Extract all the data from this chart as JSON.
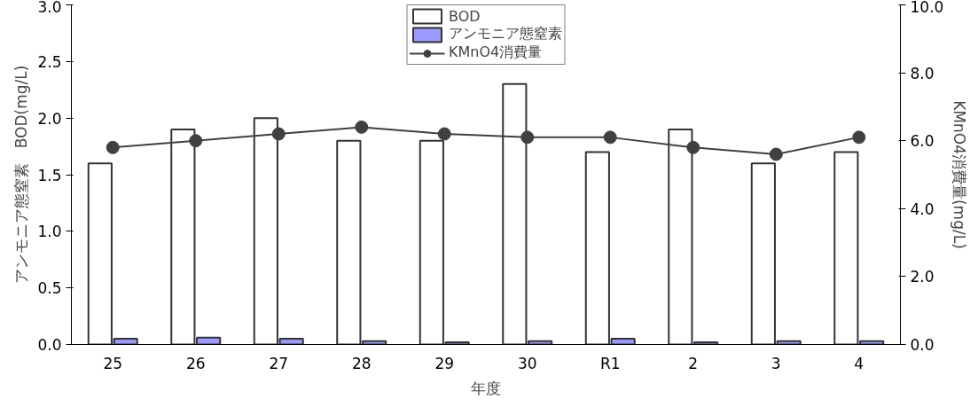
{
  "chart_data": {
    "type": "bar",
    "xlabel": "年度",
    "ylabel": "アンモニア態窒素　BOD(mg/L)",
    "y2label": "KMnO4消費量(mg/L)",
    "categories": [
      "25",
      "26",
      "27",
      "28",
      "29",
      "30",
      "R1",
      "2",
      "3",
      "4"
    ],
    "series": [
      {
        "name": "BOD",
        "color": "#ffffff",
        "values": [
          1.6,
          1.9,
          2.0,
          1.8,
          1.8,
          2.3,
          1.7,
          1.9,
          1.6,
          1.7
        ]
      },
      {
        "name": "アンモニア態窒素",
        "color": "#9999ff",
        "values": [
          0.05,
          0.06,
          0.05,
          0.03,
          0.02,
          0.03,
          0.05,
          0.02,
          0.03,
          0.03
        ]
      },
      {
        "name": "KMnO4消費量",
        "type": "line",
        "axis": "y2",
        "color": "#404040",
        "values": [
          5.8,
          6.0,
          6.2,
          6.4,
          6.2,
          6.1,
          6.1,
          5.8,
          5.6,
          6.1
        ]
      }
    ],
    "ylim": [
      0,
      3
    ],
    "yticks": [
      {
        "value": 0,
        "label": "0.0"
      },
      {
        "value": 0.5,
        "label": "0.5"
      },
      {
        "value": 1,
        "label": "1.0"
      },
      {
        "value": 1.5,
        "label": "1.5"
      },
      {
        "value": 2,
        "label": "2.0"
      },
      {
        "value": 2.5,
        "label": "2.5"
      },
      {
        "value": 3,
        "label": "3.0"
      }
    ],
    "y2lim": [
      0,
      10
    ],
    "y2ticks": [
      {
        "value": 0,
        "label": "0.0"
      },
      {
        "value": 2,
        "label": "2.0"
      },
      {
        "value": 4,
        "label": "4.0"
      },
      {
        "value": 6,
        "label": "6.0"
      },
      {
        "value": 8,
        "label": "8.0"
      },
      {
        "value": 10,
        "label": "10.0"
      }
    ],
    "marker": "circle",
    "legend": "top",
    "grid": false
  }
}
